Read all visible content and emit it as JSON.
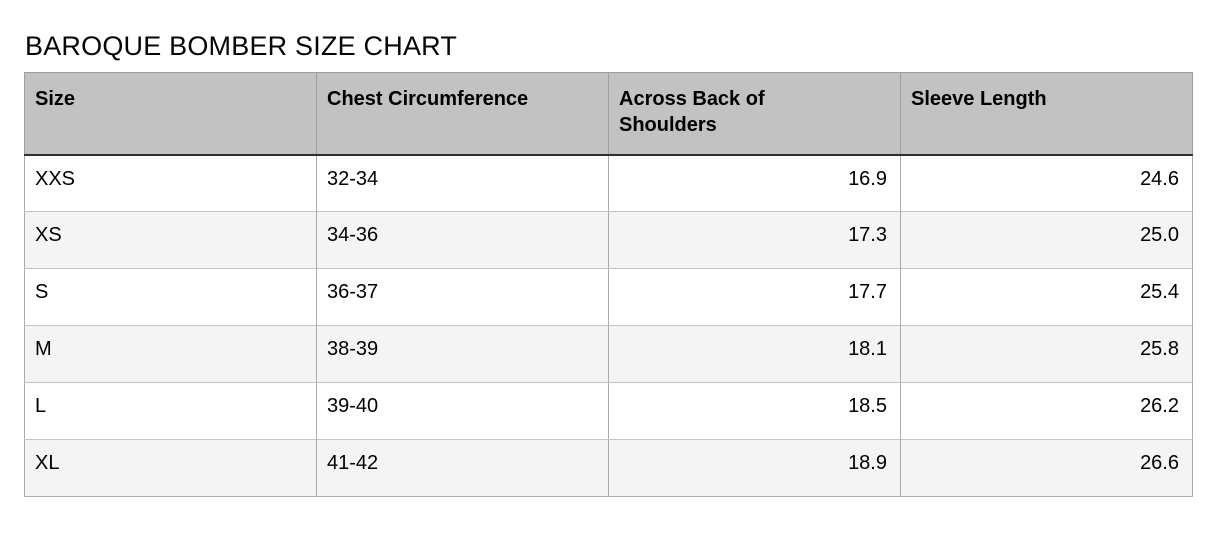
{
  "page": {
    "title": "BAROQUE BOMBER SIZE CHART"
  },
  "colors": {
    "header_bg": "#c1c2c1",
    "row_alt_bg": "#f4f4f4",
    "header_rule": "#2f2f2f",
    "grid_line": "#ababab",
    "text": "#000000"
  },
  "table": {
    "columns": [
      {
        "label": "Size",
        "align": "left"
      },
      {
        "label": "Chest Circumference",
        "align": "left"
      },
      {
        "label": "Across Back of Shoulders",
        "align": "right"
      },
      {
        "label": "Sleeve Length",
        "align": "right"
      }
    ],
    "rows": [
      {
        "size": "XXS",
        "chest": "32-34",
        "back": "16.9",
        "sleeve": "24.6"
      },
      {
        "size": "XS",
        "chest": "34-36",
        "back": "17.3",
        "sleeve": "25.0"
      },
      {
        "size": "S",
        "chest": "36-37",
        "back": "17.7",
        "sleeve": "25.4"
      },
      {
        "size": "M",
        "chest": "38-39",
        "back": "18.1",
        "sleeve": "25.8"
      },
      {
        "size": "L",
        "chest": "39-40",
        "back": "18.5",
        "sleeve": "26.2"
      },
      {
        "size": "XL",
        "chest": "41-42",
        "back": "18.9",
        "sleeve": "26.6"
      }
    ]
  },
  "chart_data": {
    "type": "table",
    "title": "BAROQUE BOMBER SIZE CHART",
    "columns": [
      "Size",
      "Chest Circumference",
      "Across Back of Shoulders",
      "Sleeve Length"
    ],
    "rows": [
      [
        "XXS",
        "32-34",
        16.9,
        24.6
      ],
      [
        "XS",
        "34-36",
        17.3,
        25.0
      ],
      [
        "S",
        "36-37",
        17.7,
        25.4
      ],
      [
        "M",
        "38-39",
        18.1,
        25.8
      ],
      [
        "L",
        "39-40",
        18.5,
        26.2
      ],
      [
        "XL",
        "41-42",
        18.9,
        26.6
      ]
    ]
  }
}
